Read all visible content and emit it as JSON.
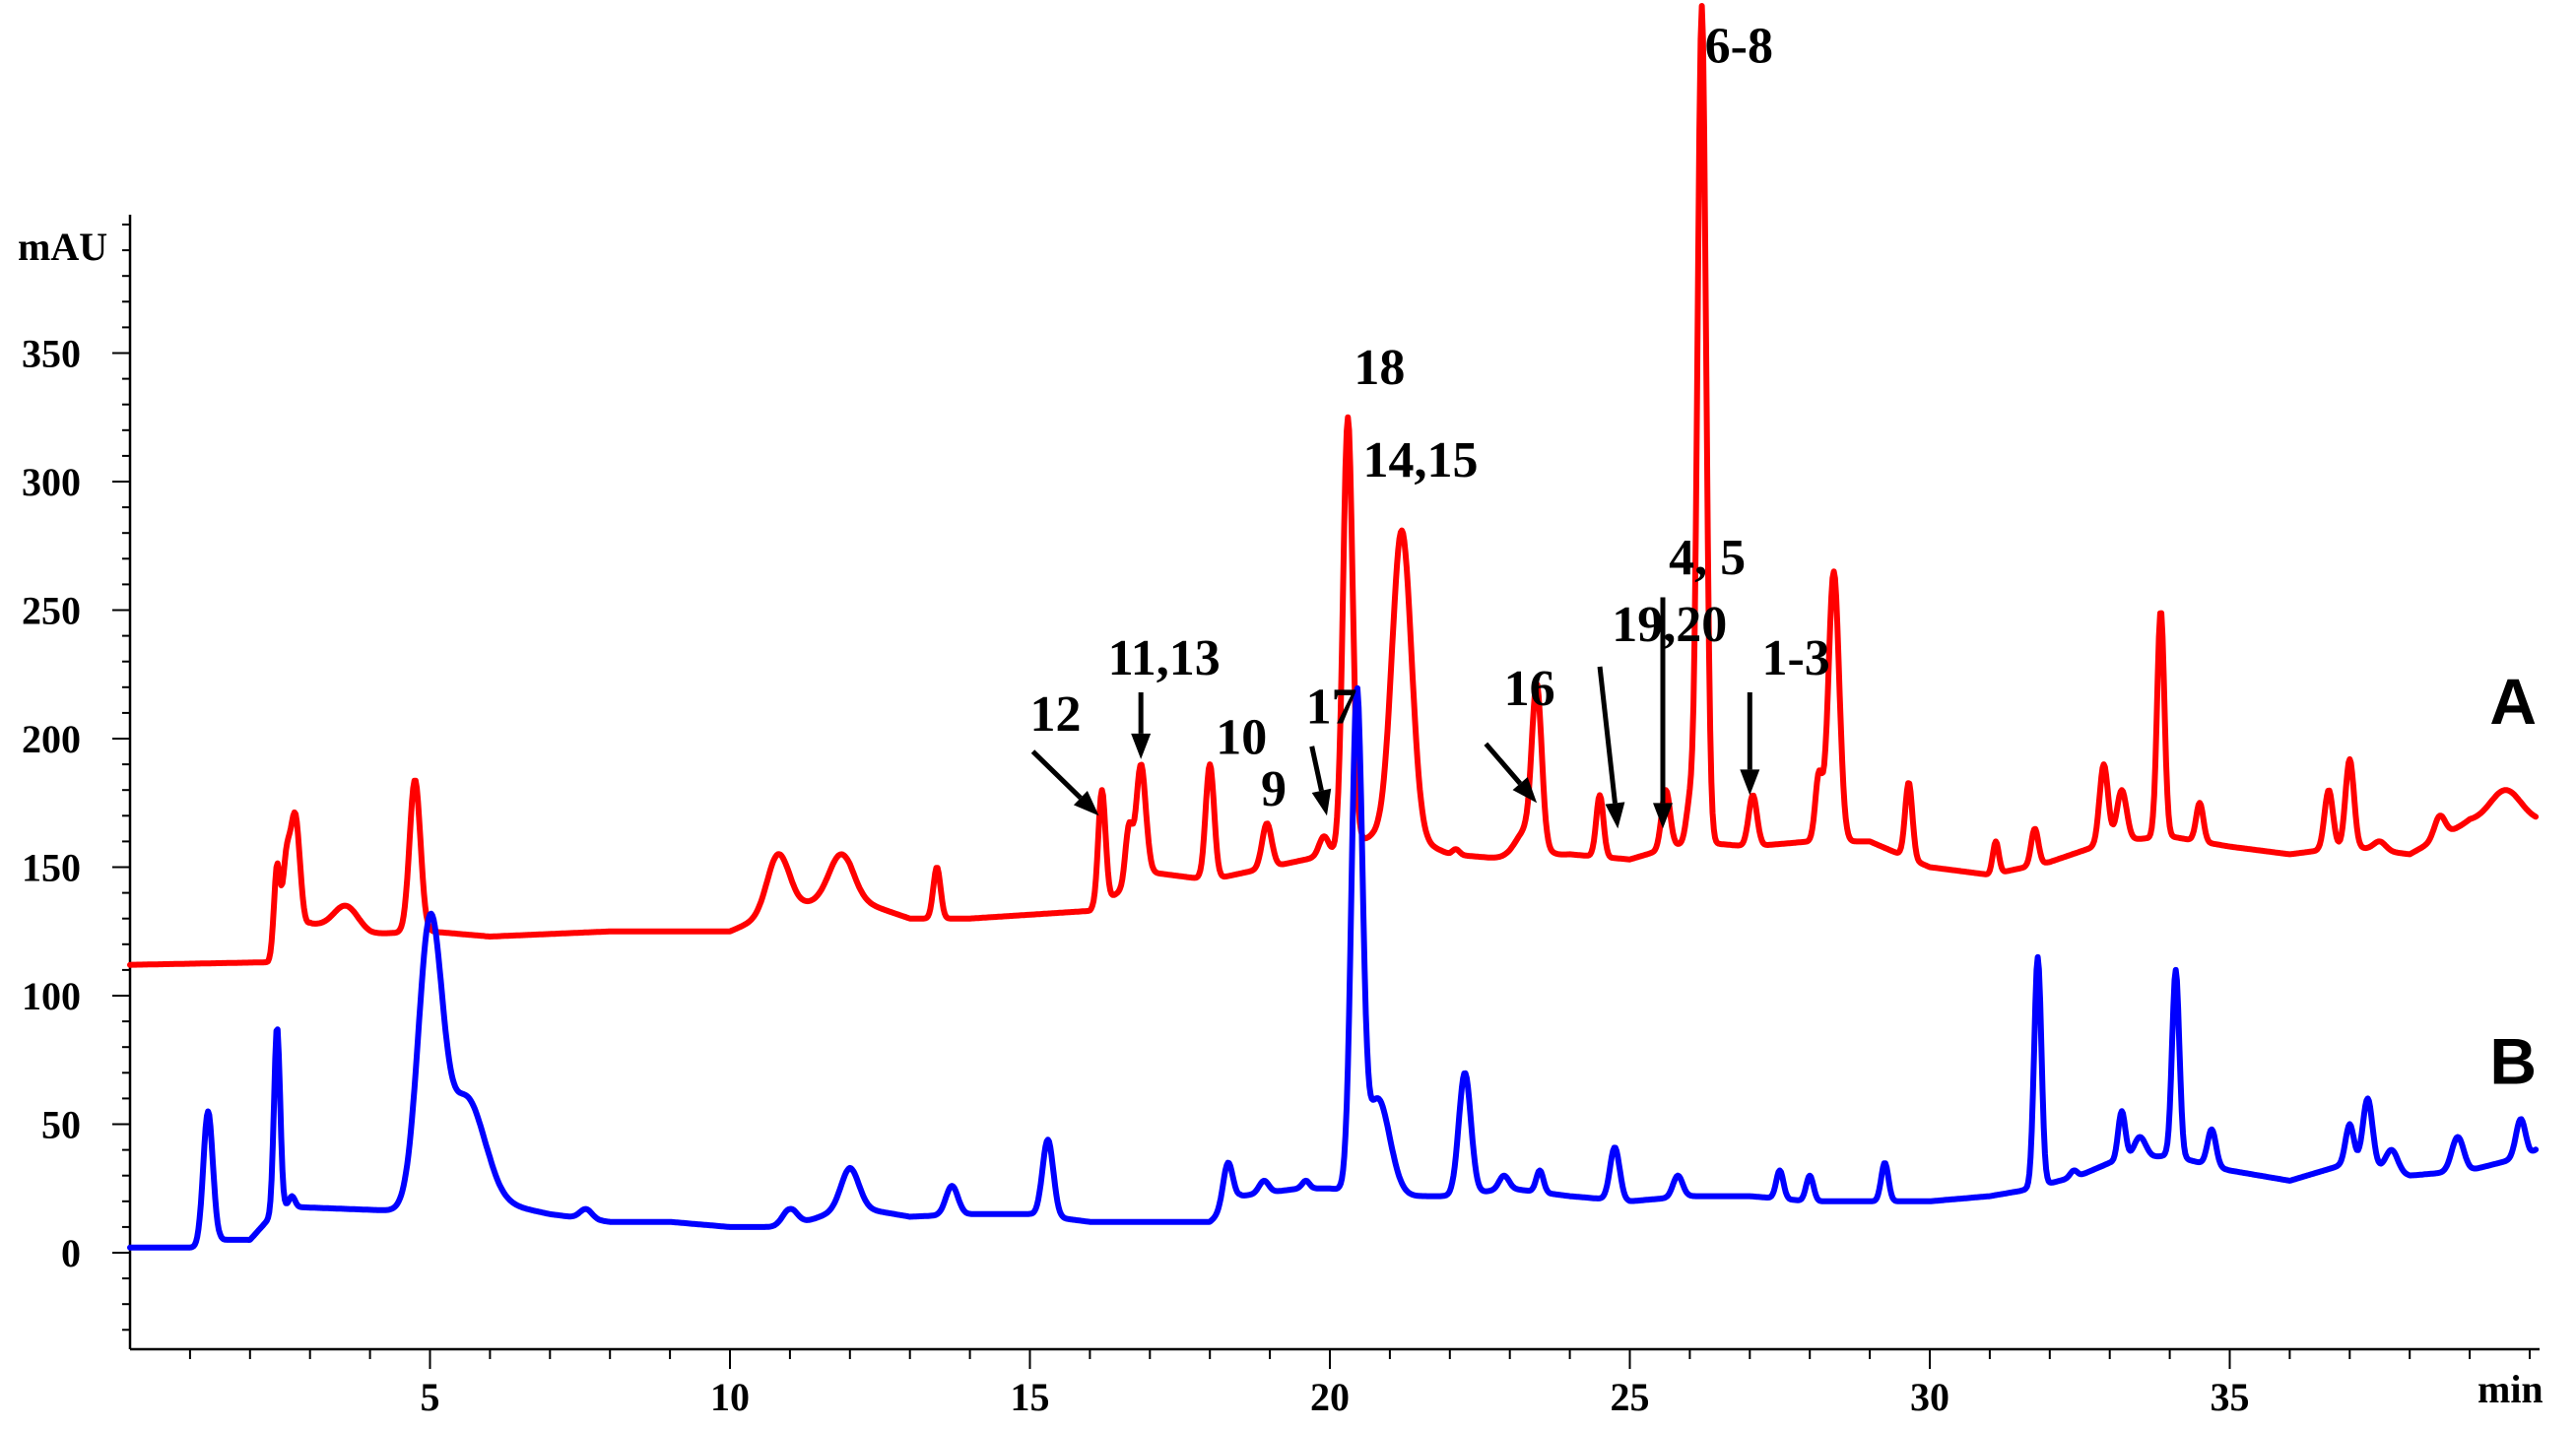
{
  "chart_data": {
    "type": "line",
    "ylabel": "mAU",
    "xlabel": "min",
    "xlim": [
      0,
      40.5
    ],
    "ylim": [
      -35,
      405
    ],
    "x_ticks": [
      5,
      10,
      15,
      20,
      25,
      30,
      35
    ],
    "y_ticks": [
      0,
      50,
      100,
      150,
      200,
      250,
      300,
      350
    ],
    "series": [
      {
        "name": "A",
        "color": "#ff0000",
        "baseline": [
          [
            0,
            112
          ],
          [
            2.3,
            113
          ],
          [
            3,
            128
          ],
          [
            4,
            124
          ],
          [
            5,
            125
          ],
          [
            6,
            123
          ],
          [
            8,
            125
          ],
          [
            10,
            125
          ],
          [
            11,
            135
          ],
          [
            12,
            138
          ],
          [
            13,
            130
          ],
          [
            14,
            130
          ],
          [
            16,
            133
          ],
          [
            17,
            148
          ],
          [
            18,
            145
          ],
          [
            19,
            150
          ],
          [
            20,
            155
          ],
          [
            21,
            165
          ],
          [
            22,
            155
          ],
          [
            23,
            153
          ],
          [
            24,
            155
          ],
          [
            25,
            153
          ],
          [
            26,
            160
          ],
          [
            27,
            158
          ],
          [
            28,
            160
          ],
          [
            29,
            160
          ],
          [
            30,
            150
          ],
          [
            31,
            147
          ],
          [
            32,
            152
          ],
          [
            33,
            160
          ],
          [
            34,
            162
          ],
          [
            35,
            158
          ],
          [
            36,
            155
          ],
          [
            37,
            158
          ],
          [
            38,
            155
          ],
          [
            39,
            168
          ],
          [
            40,
            168
          ],
          [
            40.1,
            168
          ]
        ],
        "peaks": [
          [
            2.45,
            150,
            0.05
          ],
          [
            2.6,
            148,
            0.06
          ],
          [
            2.75,
            170,
            0.08
          ],
          [
            4.75,
            184,
            0.09
          ],
          [
            3.6,
            135,
            0.2
          ],
          [
            10.8,
            155,
            0.18
          ],
          [
            11.85,
            155,
            0.2
          ],
          [
            13.45,
            150,
            0.06
          ],
          [
            16.2,
            180,
            0.06
          ],
          [
            16.65,
            165,
            0.06
          ],
          [
            16.85,
            190,
            0.08
          ],
          [
            18.0,
            190,
            0.07
          ],
          [
            18.95,
            167,
            0.08
          ],
          [
            19.9,
            162,
            0.08
          ],
          [
            20.3,
            325,
            0.08
          ],
          [
            21.2,
            281,
            0.16
          ],
          [
            22.1,
            157,
            0.06
          ],
          [
            23.45,
            213,
            0.08
          ],
          [
            23.3,
            165,
            0.2
          ],
          [
            24.5,
            178,
            0.06
          ],
          [
            25.6,
            180,
            0.07
          ],
          [
            26.2,
            485,
            0.07
          ],
          [
            26.0,
            175,
            0.06
          ],
          [
            27.05,
            178,
            0.07
          ],
          [
            28.15,
            185,
            0.06
          ],
          [
            28.4,
            265,
            0.09
          ],
          [
            29.65,
            183,
            0.06
          ],
          [
            31.1,
            160,
            0.05
          ],
          [
            31.75,
            165,
            0.06
          ],
          [
            32.9,
            190,
            0.07
          ],
          [
            33.2,
            180,
            0.08
          ],
          [
            33.85,
            250,
            0.06
          ],
          [
            34.5,
            175,
            0.06
          ],
          [
            36.65,
            180,
            0.07
          ],
          [
            37.0,
            192,
            0.07
          ],
          [
            37.5,
            160,
            0.1
          ],
          [
            38.5,
            170,
            0.09
          ],
          [
            39.6,
            180,
            0.25
          ]
        ]
      },
      {
        "name": "B",
        "color": "#0000ff",
        "baseline": [
          [
            0,
            2
          ],
          [
            1.2,
            2
          ],
          [
            1.5,
            5
          ],
          [
            2,
            5
          ],
          [
            2.5,
            18
          ],
          [
            4.8,
            16
          ],
          [
            6,
            20
          ],
          [
            7,
            15
          ],
          [
            8,
            12
          ],
          [
            9,
            12
          ],
          [
            10,
            10
          ],
          [
            11,
            10
          ],
          [
            12,
            18
          ],
          [
            13,
            14
          ],
          [
            14,
            15
          ],
          [
            15,
            15
          ],
          [
            16,
            12
          ],
          [
            17,
            12
          ],
          [
            18,
            12
          ],
          [
            18.5,
            22
          ],
          [
            19.5,
            25
          ],
          [
            20,
            25
          ],
          [
            21,
            22
          ],
          [
            22,
            22
          ],
          [
            23,
            25
          ],
          [
            24,
            22
          ],
          [
            25,
            20
          ],
          [
            26,
            22
          ],
          [
            27,
            22
          ],
          [
            28,
            20
          ],
          [
            29,
            20
          ],
          [
            30,
            20
          ],
          [
            31,
            22
          ],
          [
            31.5,
            24
          ],
          [
            32.5,
            30
          ],
          [
            33,
            35
          ],
          [
            34,
            38
          ],
          [
            35,
            32
          ],
          [
            36,
            28
          ],
          [
            37,
            35
          ],
          [
            38,
            30
          ],
          [
            39,
            32
          ],
          [
            40,
            38
          ],
          [
            40.1,
            40
          ]
        ],
        "peaks": [
          [
            1.3,
            55,
            0.08
          ],
          [
            2.45,
            88,
            0.05
          ],
          [
            2.7,
            22,
            0.05
          ],
          [
            5.0,
            126,
            0.2
          ],
          [
            5.6,
            60,
            0.3
          ],
          [
            7.6,
            17,
            0.1
          ],
          [
            11.0,
            17,
            0.12
          ],
          [
            12.0,
            33,
            0.15
          ],
          [
            13.7,
            26,
            0.1
          ],
          [
            15.3,
            44,
            0.09
          ],
          [
            18.3,
            35,
            0.08
          ],
          [
            18.9,
            28,
            0.08
          ],
          [
            19.6,
            28,
            0.06
          ],
          [
            20.45,
            212,
            0.09
          ],
          [
            20.8,
            60,
            0.2
          ],
          [
            22.25,
            70,
            0.1
          ],
          [
            22.9,
            30,
            0.08
          ],
          [
            23.5,
            32,
            0.06
          ],
          [
            24.75,
            41,
            0.08
          ],
          [
            25.8,
            30,
            0.08
          ],
          [
            27.5,
            32,
            0.06
          ],
          [
            28.0,
            30,
            0.06
          ],
          [
            29.25,
            35,
            0.06
          ],
          [
            31.8,
            115,
            0.06
          ],
          [
            32.4,
            32,
            0.06
          ],
          [
            33.2,
            55,
            0.06
          ],
          [
            33.5,
            45,
            0.1
          ],
          [
            34.1,
            110,
            0.06
          ],
          [
            34.7,
            48,
            0.07
          ],
          [
            37.0,
            50,
            0.07
          ],
          [
            37.3,
            60,
            0.08
          ],
          [
            37.7,
            40,
            0.1
          ],
          [
            38.8,
            45,
            0.1
          ],
          [
            39.85,
            52,
            0.08
          ]
        ]
      }
    ],
    "trace_labels": [
      {
        "text": "A",
        "series": "A"
      },
      {
        "text": "B",
        "series": "B"
      }
    ],
    "annotations": [
      {
        "text": "6-8",
        "x": 26.25,
        "y": 463,
        "arrow": false
      },
      {
        "text": "18",
        "x": 20.4,
        "y": 338,
        "arrow": false
      },
      {
        "text": "14,15",
        "x": 20.55,
        "y": 302,
        "arrow": false
      },
      {
        "text": "4, 5",
        "x": 25.65,
        "y": 264,
        "arrow": true,
        "arrow_from": [
          25.55,
          255
        ],
        "arrow_to": [
          25.55,
          165
        ]
      },
      {
        "text": "19,20",
        "x": 24.7,
        "y": 238,
        "arrow": true,
        "arrow_from": [
          24.5,
          228
        ],
        "arrow_to": [
          24.8,
          165
        ]
      },
      {
        "text": "1-3",
        "x": 27.2,
        "y": 225,
        "arrow": true,
        "arrow_from": [
          27.0,
          218
        ],
        "arrow_to": [
          27.0,
          178
        ]
      },
      {
        "text": "11,13",
        "x": 16.3,
        "y": 225,
        "arrow": true,
        "arrow_from": [
          16.85,
          218
        ],
        "arrow_to": [
          16.85,
          192
        ]
      },
      {
        "text": "16",
        "x": 22.9,
        "y": 213,
        "arrow": true,
        "arrow_from": [
          22.6,
          198
        ],
        "arrow_to": [
          23.45,
          175
        ]
      },
      {
        "text": "10",
        "x": 18.1,
        "y": 194,
        "arrow": false
      },
      {
        "text": "17",
        "x": 19.6,
        "y": 206,
        "arrow": true,
        "arrow_from": [
          19.7,
          197
        ],
        "arrow_to": [
          19.95,
          170
        ]
      },
      {
        "text": "12",
        "x": 15.0,
        "y": 203,
        "arrow": true,
        "arrow_from": [
          15.05,
          195
        ],
        "arrow_to": [
          16.15,
          170
        ]
      },
      {
        "text": "9",
        "x": 18.85,
        "y": 174,
        "arrow": false
      }
    ]
  }
}
